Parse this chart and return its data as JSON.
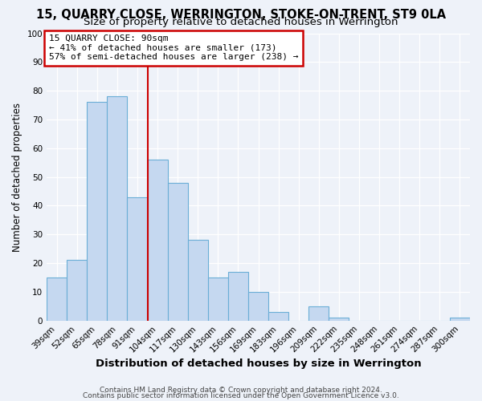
{
  "title": "15, QUARRY CLOSE, WERRINGTON, STOKE-ON-TRENT, ST9 0LA",
  "subtitle": "Size of property relative to detached houses in Werrington",
  "xlabel": "Distribution of detached houses by size in Werrington",
  "ylabel": "Number of detached properties",
  "bar_labels": [
    "39sqm",
    "52sqm",
    "65sqm",
    "78sqm",
    "91sqm",
    "104sqm",
    "117sqm",
    "130sqm",
    "143sqm",
    "156sqm",
    "169sqm",
    "183sqm",
    "196sqm",
    "209sqm",
    "222sqm",
    "235sqm",
    "248sqm",
    "261sqm",
    "274sqm",
    "287sqm",
    "300sqm"
  ],
  "bar_values": [
    15,
    21,
    76,
    78,
    43,
    56,
    48,
    28,
    15,
    17,
    10,
    3,
    0,
    5,
    1,
    0,
    0,
    0,
    0,
    0,
    1
  ],
  "bar_color": "#c5d8f0",
  "bar_edge_color": "#6aaed6",
  "ylim": [
    0,
    100
  ],
  "vline_color": "#cc0000",
  "annotation_title": "15 QUARRY CLOSE: 90sqm",
  "annotation_line1": "← 41% of detached houses are smaller (173)",
  "annotation_line2": "57% of semi-detached houses are larger (238) →",
  "annotation_box_color": "#ffffff",
  "annotation_box_edge": "#cc0000",
  "background_color": "#eef2f9",
  "grid_color": "#ffffff",
  "footer1": "Contains HM Land Registry data © Crown copyright and database right 2024.",
  "footer2": "Contains public sector information licensed under the Open Government Licence v3.0.",
  "title_fontsize": 10.5,
  "subtitle_fontsize": 9.5,
  "xlabel_fontsize": 9.5,
  "ylabel_fontsize": 8.5,
  "tick_fontsize": 7.5,
  "footer_fontsize": 6.5,
  "annot_fontsize": 8.0
}
